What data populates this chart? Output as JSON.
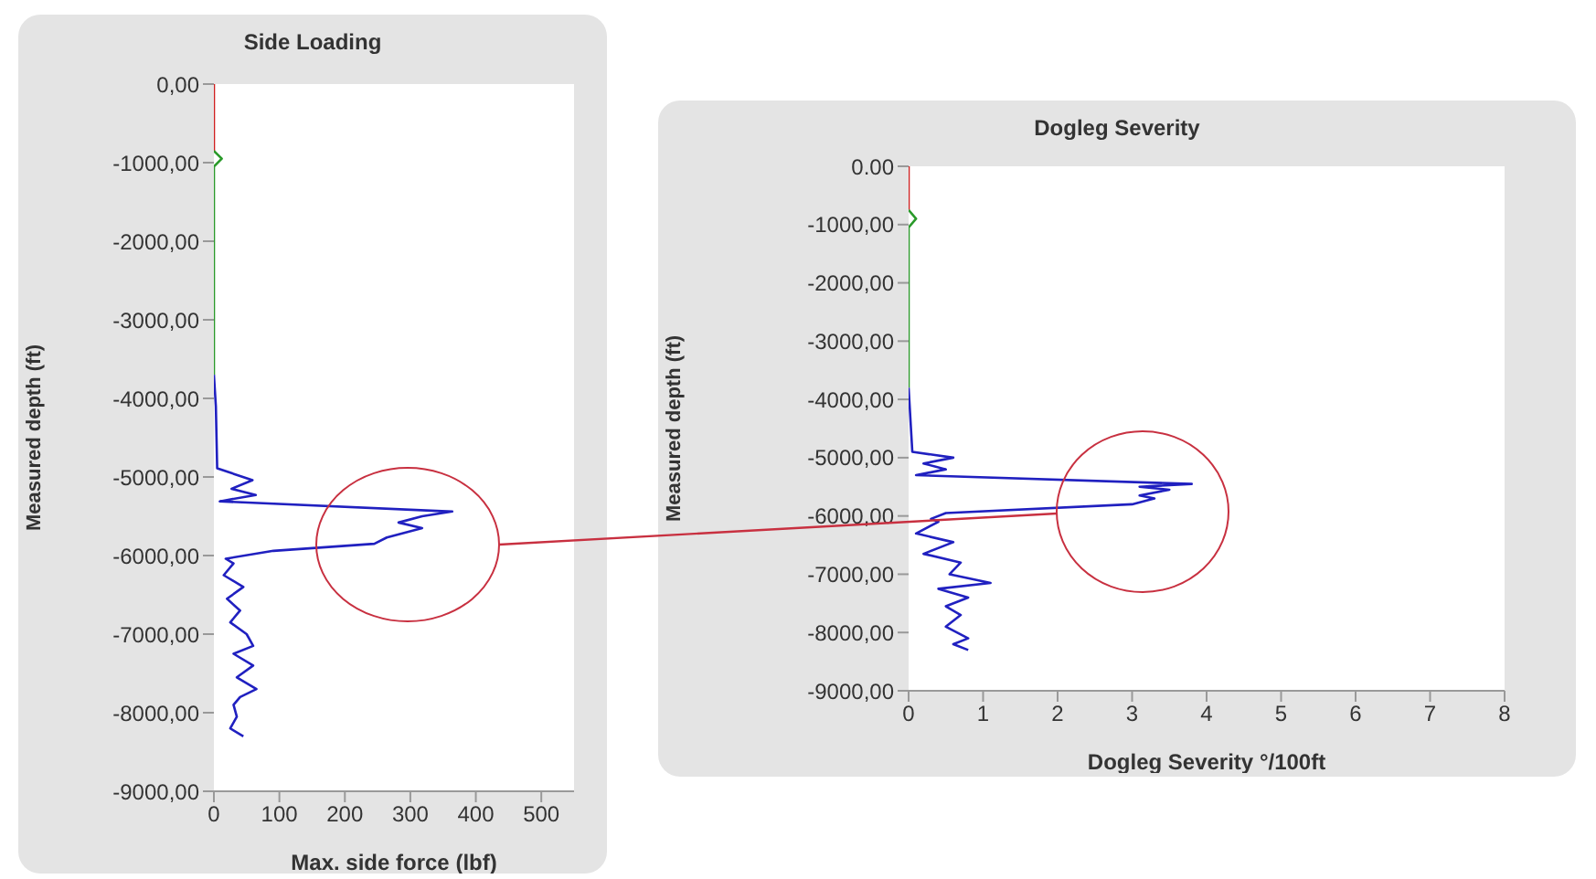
{
  "chart_data": [
    {
      "type": "line",
      "title": "Side Loading",
      "xlabel": "Max. side force (lbf)",
      "ylabel": "Measured depth (ft)",
      "xlim": [
        0,
        550
      ],
      "xticks": [
        0,
        100,
        200,
        300,
        400,
        500
      ],
      "ylim": [
        -9000,
        0
      ],
      "yticks": [
        {
          "value": 0,
          "label": "0,00"
        },
        {
          "value": -1000,
          "label": "-1000,00"
        },
        {
          "value": -2000,
          "label": "-2000,00"
        },
        {
          "value": -3000,
          "label": "-3000,00"
        },
        {
          "value": -4000,
          "label": "-4000,00"
        },
        {
          "value": -5000,
          "label": "-5000,00"
        },
        {
          "value": -6000,
          "label": "-6000,00"
        },
        {
          "value": -7000,
          "label": "-7000,00"
        },
        {
          "value": -8000,
          "label": "-8000,00"
        },
        {
          "value": -9000,
          "label": "-9000,00"
        }
      ],
      "grid": false,
      "series": [
        {
          "color": "#d02020",
          "x": [
            0,
            0
          ],
          "values": [
            0,
            -850
          ]
        },
        {
          "color": "#2a9a2a",
          "x": [
            0,
            12,
            0,
            0,
            0
          ],
          "values": [
            -850,
            -950,
            -1050,
            -2000,
            -3700
          ]
        },
        {
          "color": "#2020c0",
          "x": [
            0,
            3,
            5,
            59,
            27,
            64,
            9,
            364,
            318,
            282,
            318,
            264,
            245,
            91,
            18,
            30,
            15,
            45,
            20,
            40,
            25,
            50,
            60,
            30,
            60,
            35,
            65,
            40,
            30,
            35,
            25,
            45
          ],
          "values": [
            -3700,
            -4100,
            -4890,
            -5040,
            -5150,
            -5230,
            -5310,
            -5440,
            -5500,
            -5580,
            -5650,
            -5770,
            -5850,
            -5940,
            -6040,
            -6100,
            -6250,
            -6400,
            -6550,
            -6700,
            -6850,
            -7000,
            -7150,
            -7250,
            -7400,
            -7550,
            -7700,
            -7800,
            -7900,
            -8050,
            -8200,
            -8300
          ]
        }
      ]
    },
    {
      "type": "line",
      "title": "Dogleg Severity",
      "xlabel": "Dogleg Severity °/100ft",
      "ylabel": "Measured depth (ft)",
      "xlim": [
        0,
        8
      ],
      "xticks": [
        0,
        1,
        2,
        3,
        4,
        5,
        6,
        7,
        8
      ],
      "ylim": [
        -9000,
        0
      ],
      "yticks": [
        {
          "value": 0,
          "label": "0.00"
        },
        {
          "value": -1000,
          "label": "-1000,00"
        },
        {
          "value": -2000,
          "label": "-2000,00"
        },
        {
          "value": -3000,
          "label": "-3000,00"
        },
        {
          "value": -4000,
          "label": "-4000,00"
        },
        {
          "value": -5000,
          "label": "-5000,00"
        },
        {
          "value": -6000,
          "label": "-6000,00"
        },
        {
          "value": -7000,
          "label": "-7000,00"
        },
        {
          "value": -8000,
          "label": "-8000,00"
        },
        {
          "value": -9000,
          "label": "-9000,00"
        }
      ],
      "grid": false,
      "series": [
        {
          "color": "#d02020",
          "x": [
            0,
            0
          ],
          "values": [
            0,
            -750
          ]
        },
        {
          "color": "#2a9a2a",
          "x": [
            0,
            0.1,
            0,
            0,
            0
          ],
          "values": [
            -750,
            -900,
            -1050,
            -2000,
            -3800
          ]
        },
        {
          "color": "#2020c0",
          "x": [
            0,
            0.05,
            0.6,
            0.2,
            0.5,
            0.1,
            3.8,
            3.1,
            3.5,
            3.1,
            3.3,
            3,
            0.5,
            0.3,
            0.4,
            0.1,
            0.6,
            0.2,
            0.7,
            0.55,
            1.1,
            0.4,
            0.8,
            0.5,
            0.7,
            0.5,
            0.8,
            0.6,
            0.8
          ],
          "values": [
            -3800,
            -4900,
            -5000,
            -5100,
            -5200,
            -5300,
            -5450,
            -5500,
            -5550,
            -5650,
            -5700,
            -5800,
            -5950,
            -6050,
            -6100,
            -6300,
            -6450,
            -6650,
            -6800,
            -7000,
            -7150,
            -7250,
            -7400,
            -7550,
            -7700,
            -7900,
            -8100,
            -8200,
            -8300
          ]
        }
      ]
    }
  ]
}
